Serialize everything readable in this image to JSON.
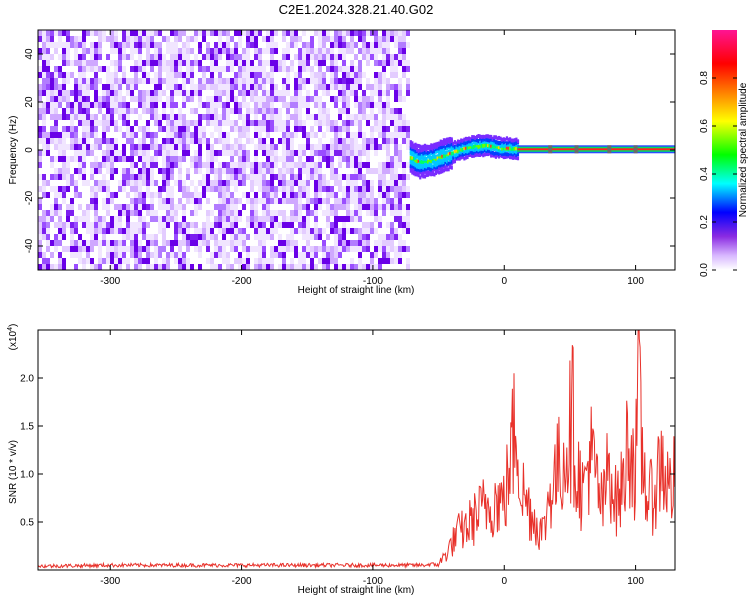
{
  "title": "C2E1.2024.328.21.40.G02",
  "chart_data": [
    {
      "type": "heatmap",
      "xlabel": "Height of straight line (km)",
      "ylabel": "Frequency (Hz)",
      "xlim": [
        -355,
        130
      ],
      "ylim": [
        -50,
        50
      ],
      "xticks": [
        -300,
        -200,
        -100,
        0,
        100
      ],
      "xtick_labels": [
        "-300",
        "-200",
        "-100",
        "0",
        "100"
      ],
      "yticks": [
        -40,
        -20,
        0,
        20,
        40
      ],
      "ytick_labels": [
        "-40",
        "-20",
        "0",
        "20",
        "40"
      ],
      "noise_region_x": [
        -355,
        -72
      ],
      "signal_start_x": -72,
      "signal_track": [
        {
          "x": -72,
          "f": -3
        },
        {
          "x": -65,
          "f": -5
        },
        {
          "x": -55,
          "f": -4
        },
        {
          "x": -45,
          "f": -2
        },
        {
          "x": -35,
          "f": 0
        },
        {
          "x": -25,
          "f": 1.5
        },
        {
          "x": -15,
          "f": 2
        },
        {
          "x": -5,
          "f": 1
        },
        {
          "x": 10,
          "f": 0.5
        },
        {
          "x": 50,
          "f": 0.3
        },
        {
          "x": 130,
          "f": 0.2
        }
      ],
      "colorbar": {
        "label": "Normalized spectral amplitude",
        "range": [
          0,
          1
        ],
        "ticks": [
          0.0,
          0.2,
          0.4,
          0.6,
          0.8
        ],
        "tick_labels": [
          "0.0",
          "0.2",
          "0.4",
          "0.6",
          "0.8"
        ],
        "colormap": [
          "#ffffff",
          "#8a2be2",
          "#0000ff",
          "#00ffff",
          "#00ff00",
          "#ffff00",
          "#ff8000",
          "#ff0000",
          "#ff1493"
        ]
      },
      "grid": false
    },
    {
      "type": "line",
      "xlabel": "Height of straight line (km)",
      "ylabel": "SNR (10 * v/v)",
      "yscale_label": "(x10",
      "yscale_exponent": "4",
      "yscale_suffix": ")",
      "xlim": [
        -355,
        130
      ],
      "ylim": [
        0,
        2.5
      ],
      "xticks": [
        -300,
        -200,
        -100,
        0,
        100
      ],
      "xtick_labels": [
        "-300",
        "-200",
        "-100",
        "0",
        "100"
      ],
      "yticks": [
        0.5,
        1.0,
        1.5,
        2.0
      ],
      "ytick_labels": [
        "0.5",
        "1.0",
        "1.5",
        "2.0"
      ],
      "color": "#e8312a",
      "series": [
        {
          "x": [
            -355,
            -300,
            -250,
            -200,
            -150,
            -100,
            -60,
            -50,
            -45,
            -40,
            -35,
            -30,
            -25,
            -20,
            -15,
            -10,
            -5,
            0,
            5,
            8,
            10,
            12,
            15,
            20,
            25,
            30,
            35,
            40,
            45,
            50,
            52,
            55,
            60,
            65,
            70,
            75,
            80,
            85,
            90,
            95,
            100,
            102,
            105,
            110,
            115,
            120,
            125,
            130
          ],
          "values": [
            0.04,
            0.05,
            0.05,
            0.05,
            0.05,
            0.05,
            0.05,
            0.08,
            0.2,
            0.35,
            0.5,
            0.55,
            0.65,
            0.75,
            0.85,
            0.9,
            0.95,
            0.9,
            1.5,
            1.9,
            2.0,
            1.2,
            1.0,
            0.8,
            0.6,
            0.5,
            1.1,
            1.3,
            1.5,
            1.9,
            2.05,
            1.4,
            1.0,
            1.6,
            1.2,
            0.8,
            1.5,
            0.9,
            1.1,
            1.85,
            1.3,
            2.45,
            1.5,
            0.9,
            1.1,
            1.5,
            1.1,
            1.2
          ]
        }
      ],
      "grid": false
    }
  ]
}
